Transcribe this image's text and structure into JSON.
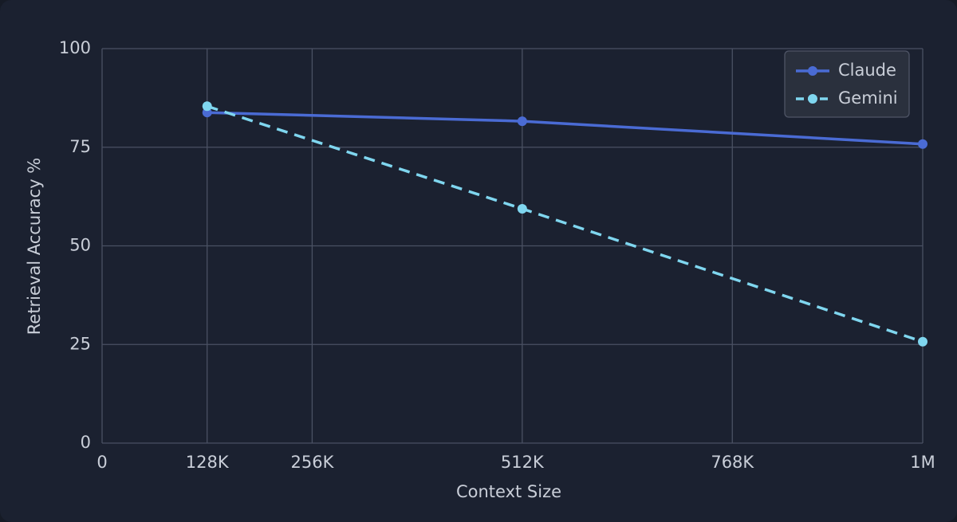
{
  "chart_data": {
    "type": "line",
    "x_label": "Context Size",
    "y_label": "Retrieval Accuracy %",
    "x": [
      128000,
      512000,
      1000000
    ],
    "series": [
      {
        "name": "Claude",
        "color": "#4a6bd4",
        "linestyle": "solid",
        "values": [
          83.8,
          81.6,
          75.8
        ]
      },
      {
        "name": "Gemini",
        "color": "#7fd6ef",
        "linestyle": "dashed",
        "values": [
          85.4,
          59.4,
          25.7
        ]
      }
    ],
    "xlim": [
      0,
      1000000
    ],
    "xticks": [
      0,
      {
        "value": 128000,
        "label": "128K"
      },
      {
        "value": 256000,
        "label": "256K"
      },
      {
        "value": 512000,
        "label": "512K"
      },
      {
        "value": 768000,
        "label": "768K"
      },
      {
        "value": 1000000,
        "label": "1M"
      }
    ],
    "ylim": [
      0,
      100
    ],
    "yticks": [
      0,
      25,
      50,
      75,
      100
    ],
    "grid": true,
    "legend": "upper right"
  }
}
